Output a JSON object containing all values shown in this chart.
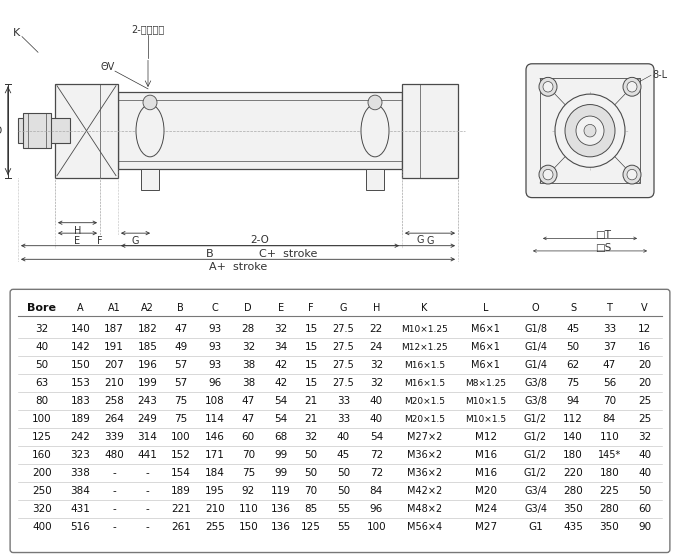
{
  "table_headers": [
    "Bore",
    "A",
    "A1",
    "A2",
    "B",
    "C",
    "D",
    "E",
    "F",
    "G",
    "H",
    "K",
    "L",
    "O",
    "S",
    "T",
    "V"
  ],
  "table_data": [
    [
      "32",
      "140",
      "187",
      "182",
      "47",
      "93",
      "28",
      "32",
      "15",
      "27.5",
      "22",
      "M10×1.25",
      "M6×1",
      "G1/8",
      "45",
      "33",
      "12"
    ],
    [
      "40",
      "142",
      "191",
      "185",
      "49",
      "93",
      "32",
      "34",
      "15",
      "27.5",
      "24",
      "M12×1.25",
      "M6×1",
      "G1/4",
      "50",
      "37",
      "16"
    ],
    [
      "50",
      "150",
      "207",
      "196",
      "57",
      "93",
      "38",
      "42",
      "15",
      "27.5",
      "32",
      "M16×1.5",
      "M6×1",
      "G1/4",
      "62",
      "47",
      "20"
    ],
    [
      "63",
      "153",
      "210",
      "199",
      "57",
      "96",
      "38",
      "42",
      "15",
      "27.5",
      "32",
      "M16×1.5",
      "M8×1.25",
      "G3/8",
      "75",
      "56",
      "20"
    ],
    [
      "80",
      "183",
      "258",
      "243",
      "75",
      "108",
      "47",
      "54",
      "21",
      "33",
      "40",
      "M20×1.5",
      "M10×1.5",
      "G3/8",
      "94",
      "70",
      "25"
    ],
    [
      "100",
      "189",
      "264",
      "249",
      "75",
      "114",
      "47",
      "54",
      "21",
      "33",
      "40",
      "M20×1.5",
      "M10×1.5",
      "G1/2",
      "112",
      "84",
      "25"
    ],
    [
      "125",
      "242",
      "339",
      "314",
      "100",
      "146",
      "60",
      "68",
      "32",
      "40",
      "54",
      "M27×2",
      "M12",
      "G1/2",
      "140",
      "110",
      "32"
    ],
    [
      "160",
      "323",
      "480",
      "441",
      "152",
      "171",
      "70",
      "99",
      "50",
      "45",
      "72",
      "M36×2",
      "M16",
      "G1/2",
      "180",
      "145*",
      "40"
    ],
    [
      "200",
      "338",
      "-",
      "-",
      "154",
      "184",
      "75",
      "99",
      "50",
      "50",
      "72",
      "M36×2",
      "M16",
      "G1/2",
      "220",
      "180",
      "40"
    ],
    [
      "250",
      "384",
      "-",
      "-",
      "189",
      "195",
      "92",
      "119",
      "70",
      "50",
      "84",
      "M42×2",
      "M20",
      "G3/4",
      "280",
      "225",
      "50"
    ],
    [
      "320",
      "431",
      "-",
      "-",
      "221",
      "210",
      "110",
      "136",
      "85",
      "55",
      "96",
      "M48×2",
      "M24",
      "G3/4",
      "350",
      "280",
      "60"
    ],
    [
      "400",
      "516",
      "-",
      "-",
      "261",
      "255",
      "150",
      "136",
      "125",
      "55",
      "100",
      "M56×4",
      "M27",
      "G1",
      "435",
      "350",
      "90"
    ]
  ],
  "bg_color": "#ffffff",
  "line_color": "#4a4a4a",
  "dim_color": "#333333",
  "gray_fill": "#f2f2f2",
  "mid_gray": "#e0e0e0",
  "dark_gray": "#c8c8c8"
}
